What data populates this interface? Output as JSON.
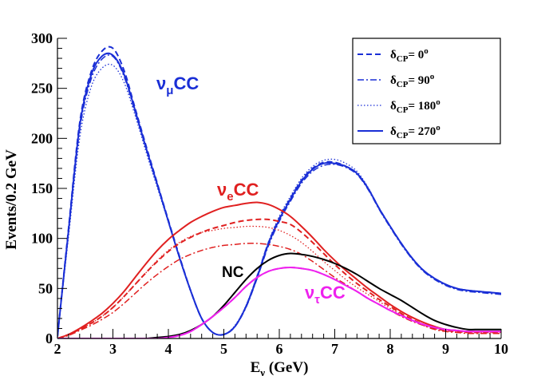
{
  "chart_data": {
    "type": "line",
    "title": "",
    "xlabel": "E",
    "xlabel_sub": "ν",
    "xlabel_unit": "(GeV)",
    "ylabel": "Events/0.2 GeV",
    "xlim": [
      2,
      10
    ],
    "ylim": [
      0,
      300
    ],
    "xticks": [
      2,
      3,
      4,
      5,
      6,
      7,
      8,
      9,
      10
    ],
    "yticks": [
      0,
      50,
      100,
      150,
      200,
      250,
      300
    ],
    "grid": false,
    "legend_position": "top-right",
    "legend": [
      {
        "label": "δ",
        "sub": "CP",
        "value": "= 0",
        "sup": "o",
        "style": "dashed"
      },
      {
        "label": "δ",
        "sub": "CP",
        "value": "= 90",
        "sup": "o",
        "style": "dashdot"
      },
      {
        "label": "δ",
        "sub": "CP",
        "value": "= 180",
        "sup": "o",
        "style": "dotted"
      },
      {
        "label": "δ",
        "sub": "CP",
        "value": "=  270",
        "sup": "o",
        "style": "solid"
      }
    ],
    "annotations": [
      {
        "main": "ν",
        "sub": "μ",
        "rest": "CC",
        "color": "#1a2fd6"
      },
      {
        "main": "ν",
        "sub": "e",
        "rest": "CC",
        "color": "#e02020"
      },
      {
        "main": "NC",
        "sub": "",
        "rest": "",
        "color": "#000000"
      },
      {
        "main": "ν",
        "sub": "τ",
        "rest": "CC",
        "color": "#ee22ee"
      }
    ],
    "colors": {
      "numu": "#1a2fd6",
      "nue": "#e02020",
      "nc": "#000000",
      "nutau": "#ee22ee"
    },
    "x": [
      2.0,
      2.2,
      2.4,
      2.6,
      2.8,
      3.0,
      3.2,
      3.4,
      3.6,
      3.8,
      4.0,
      4.2,
      4.4,
      4.6,
      4.8,
      5.0,
      5.2,
      5.4,
      5.6,
      5.8,
      6.0,
      6.2,
      6.4,
      6.6,
      6.8,
      7.0,
      7.2,
      7.4,
      7.6,
      7.8,
      8.0,
      8.2,
      8.4,
      8.6,
      8.8,
      9.0,
      9.2,
      9.4,
      9.6,
      9.8,
      10.0
    ],
    "series": [
      {
        "name": "numu CC dcp=0",
        "group": "numu",
        "style": "dashed",
        "values": [
          2,
          110,
          215,
          265,
          287,
          290,
          268,
          230,
          192,
          155,
          118,
          82,
          48,
          20,
          6,
          4,
          12,
          32,
          62,
          95,
          120,
          140,
          158,
          170,
          176,
          176,
          172,
          165,
          150,
          130,
          112,
          95,
          80,
          68,
          60,
          54,
          50,
          48,
          47,
          46,
          45
        ]
      },
      {
        "name": "numu CC dcp=90",
        "group": "numu",
        "style": "dashdot",
        "values": [
          2,
          106,
          208,
          258,
          279,
          282,
          262,
          226,
          189,
          153,
          117,
          81,
          48,
          20,
          6,
          4,
          12,
          31,
          60,
          92,
          117,
          137,
          155,
          167,
          173,
          174,
          171,
          164,
          149,
          129,
          111,
          94,
          79,
          67,
          59,
          53,
          49,
          47,
          46,
          45,
          44
        ]
      },
      {
        "name": "numu CC dcp=180",
        "group": "numu",
        "style": "dotted",
        "values": [
          2,
          102,
          200,
          250,
          270,
          273,
          256,
          223,
          186,
          151,
          116,
          80,
          47,
          20,
          6,
          4,
          13,
          33,
          63,
          96,
          122,
          142,
          160,
          172,
          178,
          179,
          175,
          167,
          151,
          130,
          112,
          95,
          80,
          68,
          60,
          54,
          50,
          48,
          47,
          46,
          45
        ]
      },
      {
        "name": "numu CC dcp=270",
        "group": "numu",
        "style": "solid",
        "values": [
          2,
          108,
          212,
          262,
          282,
          283,
          264,
          228,
          190,
          154,
          117,
          81,
          48,
          20,
          6,
          4,
          12,
          32,
          61,
          94,
          119,
          139,
          157,
          169,
          175,
          175,
          172,
          165,
          150,
          130,
          112,
          95,
          80,
          68,
          60,
          54,
          50,
          48,
          47,
          46,
          45
        ]
      },
      {
        "name": "nue CC dcp=0",
        "group": "nue",
        "style": "dashed",
        "values": [
          0,
          4,
          9,
          15,
          22,
          31,
          42,
          54,
          66,
          77,
          87,
          95,
          101,
          106,
          110,
          113,
          116,
          118,
          119,
          119,
          117,
          114,
          106,
          96,
          85,
          74,
          64,
          55,
          47,
          39,
          32,
          25,
          19,
          14,
          10,
          8,
          7,
          6,
          6,
          6,
          6
        ]
      },
      {
        "name": "nue CC dcp=90",
        "group": "nue",
        "style": "dashdot",
        "values": [
          0,
          3,
          8,
          13,
          19,
          26,
          35,
          45,
          55,
          64,
          72,
          79,
          84,
          88,
          91,
          93,
          94,
          95,
          95,
          94,
          92,
          89,
          84,
          77,
          69,
          61,
          54,
          47,
          40,
          34,
          28,
          22,
          17,
          13,
          9,
          7,
          6,
          5,
          5,
          5,
          5
        ]
      },
      {
        "name": "nue CC dcp=180",
        "group": "nue",
        "style": "dotted",
        "values": [
          0,
          4,
          9,
          15,
          22,
          31,
          42,
          54,
          66,
          78,
          88,
          96,
          102,
          106,
          108,
          110,
          111,
          112,
          112,
          111,
          108,
          103,
          96,
          87,
          77,
          68,
          59,
          51,
          44,
          37,
          30,
          24,
          18,
          13,
          10,
          8,
          7,
          6,
          6,
          6,
          6
        ]
      },
      {
        "name": "nue CC dcp=270",
        "group": "nue",
        "style": "solid",
        "values": [
          0,
          4,
          10,
          17,
          25,
          35,
          47,
          61,
          75,
          88,
          99,
          108,
          116,
          122,
          127,
          131,
          133,
          135,
          136,
          134,
          129,
          122,
          112,
          101,
          89,
          78,
          68,
          59,
          50,
          42,
          34,
          27,
          21,
          16,
          12,
          9,
          8,
          7,
          7,
          7,
          7
        ]
      },
      {
        "name": "NC",
        "group": "nc",
        "style": "solid",
        "values": [
          0,
          0,
          0,
          0,
          0,
          0,
          0,
          0,
          0,
          1,
          2,
          4,
          8,
          14,
          22,
          33,
          46,
          59,
          70,
          78,
          83,
          85,
          84,
          82,
          79,
          75,
          70,
          64,
          57,
          50,
          44,
          38,
          31,
          24,
          18,
          14,
          11,
          9,
          9,
          9,
          9
        ]
      },
      {
        "name": "nutau CC dcp=0",
        "group": "nutau",
        "style": "dashed",
        "values": [
          0,
          0,
          0,
          0,
          0,
          0,
          0,
          0,
          0,
          0,
          1,
          3,
          7,
          14,
          22,
          31,
          41,
          52,
          61,
          67,
          70,
          71,
          70,
          68,
          64,
          59,
          53,
          47,
          40,
          34,
          28,
          23,
          18,
          14,
          11,
          9,
          8,
          7,
          7,
          7,
          7
        ]
      },
      {
        "name": "nutau CC dcp=90",
        "group": "nutau",
        "style": "dashdot",
        "values": [
          0,
          0,
          0,
          0,
          0,
          0,
          0,
          0,
          0,
          0,
          1,
          3,
          7,
          14,
          22,
          31,
          41,
          52,
          61,
          67,
          70,
          71,
          70,
          68,
          64,
          59,
          53,
          47,
          40,
          34,
          28,
          23,
          18,
          14,
          11,
          9,
          8,
          7,
          7,
          7,
          7
        ]
      },
      {
        "name": "nutau CC dcp=180",
        "group": "nutau",
        "style": "dotted",
        "values": [
          0,
          0,
          0,
          0,
          0,
          0,
          0,
          0,
          0,
          0,
          1,
          3,
          7,
          14,
          22,
          31,
          41,
          52,
          61,
          67,
          70,
          71,
          70,
          68,
          64,
          59,
          53,
          47,
          40,
          34,
          28,
          23,
          18,
          14,
          11,
          9,
          8,
          7,
          7,
          7,
          7
        ]
      },
      {
        "name": "nutau CC dcp=270",
        "group": "nutau",
        "style": "solid",
        "values": [
          0,
          0,
          0,
          0,
          0,
          0,
          0,
          0,
          0,
          0,
          1,
          3,
          7,
          14,
          22,
          31,
          41,
          52,
          61,
          67,
          70,
          71,
          70,
          68,
          64,
          59,
          53,
          47,
          40,
          34,
          28,
          23,
          18,
          14,
          11,
          9,
          8,
          7,
          7,
          7,
          7
        ]
      }
    ]
  }
}
